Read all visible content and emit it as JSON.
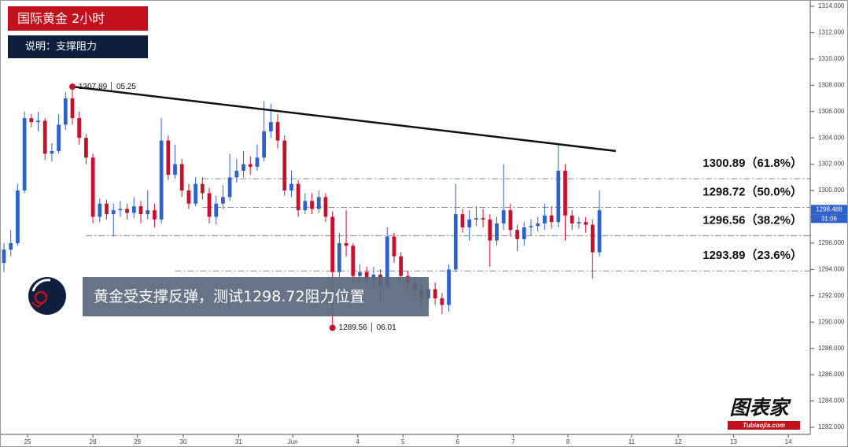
{
  "header": {
    "title": "国际黄金  2小时",
    "subtitle": "说明：支撑阻力"
  },
  "chart_data": {
    "type": "candlestick",
    "up_color": "#2f62c9",
    "down_color": "#c8102e",
    "open": [
      1294.5,
      1295.5,
      1296,
      1300,
      1305.5,
      1305.2,
      1305.3,
      1302.8,
      1303,
      1305,
      1307,
      1305.5,
      1304,
      1302.5,
      1298,
      1299,
      1298.2,
      1298.5,
      1298.6,
      1298.3,
      1298.8,
      1298.2,
      1298.5,
      1297.8,
      1303.8,
      1301.2,
      1302,
      1300,
      1299,
      1300.5,
      1299.8,
      1298,
      1299,
      1299.5,
      1301,
      1301.5,
      1302,
      1301.8,
      1302.5,
      1304.5,
      1305.2,
      1303.8,
      1300,
      1300.5,
      1298.5,
      1299.2,
      1298.6,
      1299.5,
      1298,
      1293.8,
      1296,
      1295.8,
      1293.5,
      1293.8,
      1293.2,
      1293.6,
      1292.8,
      1296.5,
      1295,
      1293.5,
      1293,
      1292.4,
      1291.8,
      1292.5,
      1291.8,
      1291.3,
      1294,
      1298.2,
      1297.2,
      1297.8,
      1297.9,
      1297.8,
      1296.2,
      1297.5,
      1298.5,
      1297,
      1296.3,
      1297.2,
      1297.3,
      1297.5,
      1298.1,
      1297.6,
      1301.5,
      1298.1,
      1297.5,
      1297.6,
      1297.4,
      1295.3
    ],
    "high": [
      1296,
      1297,
      1300.5,
      1306,
      1305.8,
      1306,
      1305.5,
      1303.6,
      1305.8,
      1307.5,
      1307.89,
      1306,
      1304.3,
      1302.8,
      1299.4,
      1299.3,
      1299,
      1299.2,
      1299,
      1299.5,
      1299.2,
      1300,
      1299,
      1305.5,
      1304.2,
      1303.5,
      1302.4,
      1300.5,
      1301,
      1301,
      1300.2,
      1299.6,
      1300.4,
      1302.8,
      1302.4,
      1303,
      1302.6,
      1303.5,
      1306.8,
      1306.6,
      1305.8,
      1304.2,
      1301.5,
      1300.8,
      1299.8,
      1299.8,
      1300,
      1299.8,
      1298.4,
      1296.8,
      1298.5,
      1296,
      1294.4,
      1294.2,
      1294.2,
      1294,
      1297.2,
      1296.8,
      1295.3,
      1293.9,
      1293.4,
      1292.8,
      1293,
      1293,
      1292.2,
      1294.4,
      1300.5,
      1298.6,
      1298.5,
      1298.8,
      1298.6,
      1298.2,
      1298,
      1302,
      1299,
      1297.4,
      1297.6,
      1297.8,
      1298,
      1299,
      1298.8,
      1303.5,
      1302,
      1298.5,
      1298,
      1298,
      1297.8,
      1300
    ],
    "low": [
      1293.8,
      1295,
      1295.8,
      1299.8,
      1304.8,
      1304.5,
      1302.3,
      1302.2,
      1302.8,
      1304.6,
      1305,
      1303.5,
      1302,
      1297.5,
      1297.6,
      1297.8,
      1296.5,
      1298,
      1297.8,
      1297.9,
      1297.5,
      1297.8,
      1297.2,
      1297.5,
      1300.8,
      1300.9,
      1299.5,
      1298.6,
      1298.8,
      1299.3,
      1297.5,
      1297.4,
      1298.6,
      1299.2,
      1300.6,
      1301,
      1301.2,
      1301.5,
      1302.2,
      1304,
      1303.2,
      1299.6,
      1299.5,
      1298,
      1298.2,
      1298.2,
      1298.3,
      1297.6,
      1289.56,
      1293.4,
      1295,
      1293,
      1293,
      1292.8,
      1292.5,
      1291.5,
      1292.5,
      1294.5,
      1293,
      1292.4,
      1291.8,
      1291.2,
      1291.3,
      1291.3,
      1290.6,
      1290.8,
      1293.8,
      1296.8,
      1296.2,
      1297.3,
      1297.2,
      1294.2,
      1295.8,
      1297,
      1296.5,
      1295.4,
      1295.8,
      1296.6,
      1296.9,
      1297,
      1297.1,
      1297.2,
      1296.2,
      1297,
      1297.1,
      1296.8,
      1293.3,
      1295
    ],
    "close": [
      1295.5,
      1296,
      1300,
      1305.5,
      1305.2,
      1305.3,
      1302.8,
      1303,
      1305,
      1307,
      1305.5,
      1304,
      1302.5,
      1298,
      1299,
      1298.2,
      1298.5,
      1298.6,
      1298.3,
      1298.8,
      1298.2,
      1298.5,
      1297.8,
      1303.8,
      1301.2,
      1302,
      1300,
      1299,
      1300.5,
      1299.8,
      1298,
      1299,
      1299.5,
      1301,
      1301.5,
      1302,
      1301.8,
      1302.5,
      1304.5,
      1305.2,
      1303.8,
      1300,
      1300.5,
      1298.5,
      1299.2,
      1298.6,
      1299.5,
      1298,
      1293.8,
      1296,
      1295.8,
      1293.5,
      1293.8,
      1293.2,
      1293.6,
      1292.8,
      1296.5,
      1295,
      1293.5,
      1293,
      1292.4,
      1291.8,
      1292.5,
      1291.8,
      1291.3,
      1294,
      1298.2,
      1297.2,
      1297.8,
      1297.9,
      1297.8,
      1296.2,
      1297.5,
      1298.5,
      1297,
      1296.3,
      1297.2,
      1297.3,
      1297.5,
      1298.1,
      1297.6,
      1301.5,
      1298.1,
      1297.5,
      1297.6,
      1297.4,
      1295.3,
      1298.5
    ],
    "xlim": [
      -0.575,
      117.8
    ],
    "xticks": [
      {
        "value": 3.45,
        "label": "25"
      },
      {
        "value": 13,
        "label": "28"
      },
      {
        "value": 19.5,
        "label": "29"
      },
      {
        "value": 26.2,
        "label": "30"
      },
      {
        "value": 34.3,
        "label": "31"
      },
      {
        "value": 42.2,
        "label": "Jun"
      },
      {
        "value": 51.7,
        "label": "4"
      },
      {
        "value": 58.3,
        "label": "5"
      },
      {
        "value": 66.3,
        "label": "6"
      },
      {
        "value": 74.4,
        "label": "7"
      },
      {
        "value": 82.4,
        "label": "8"
      },
      {
        "value": 91.7,
        "label": "11"
      },
      {
        "value": 98.5,
        "label": "12"
      },
      {
        "value": 106.6,
        "label": "13"
      },
      {
        "value": 114.6,
        "label": "14"
      }
    ],
    "ylim": [
      1281.52,
      1314.3
    ],
    "yticks": [
      {
        "value": 1282,
        "label": "1282.000"
      },
      {
        "value": 1284,
        "label": "1284.000"
      },
      {
        "value": 1286,
        "label": "1286.000"
      },
      {
        "value": 1288,
        "label": "1288.000"
      },
      {
        "value": 1290,
        "label": "1290.000"
      },
      {
        "value": 1292,
        "label": "1292.000"
      },
      {
        "value": 1294,
        "label": "1294.000"
      },
      {
        "value": 1296,
        "label": "1296.000"
      },
      {
        "value": 1298,
        "label": "1298.000"
      },
      {
        "value": 1300,
        "label": "1300.000"
      },
      {
        "value": 1302,
        "label": "1302.000"
      },
      {
        "value": 1304,
        "label": "1304.000"
      },
      {
        "value": 1306,
        "label": "1306.000"
      },
      {
        "value": 1308,
        "label": "1308.000"
      },
      {
        "value": 1310,
        "label": "1310.000"
      },
      {
        "value": 1312,
        "label": "1312.000"
      },
      {
        "value": 1314,
        "label": "1314.000"
      }
    ],
    "trendline": {
      "x": [
        10,
        89.4
      ],
      "y": [
        1307.89,
        1303
      ]
    },
    "levels": [
      {
        "value": 1300.89,
        "label": "1300.89（61.8%）",
        "from": 29
      },
      {
        "value": 1298.72,
        "label": "1298.72（50.0%）",
        "from": 29
      },
      {
        "value": 1296.56,
        "label": "1296.56（38.2%）",
        "from": 12
      },
      {
        "value": 1293.89,
        "label": "1293.89（23.6%）",
        "from": 25
      }
    ],
    "annotations": [
      {
        "text": "1307.89 │ 05.25",
        "x": 10,
        "y": 1307.89,
        "color": "#c8102e"
      },
      {
        "text": "1289.56 │ 06.01",
        "x": 48,
        "y": 1289.56,
        "color": "#c8102e"
      }
    ],
    "last_price": 1298.488,
    "countdown": "31:06",
    "note": "黄金受支撑反弹，测试1298.72阻力位置"
  },
  "logo": {
    "name": "图表家",
    "site": "Tubiaojia.com"
  }
}
